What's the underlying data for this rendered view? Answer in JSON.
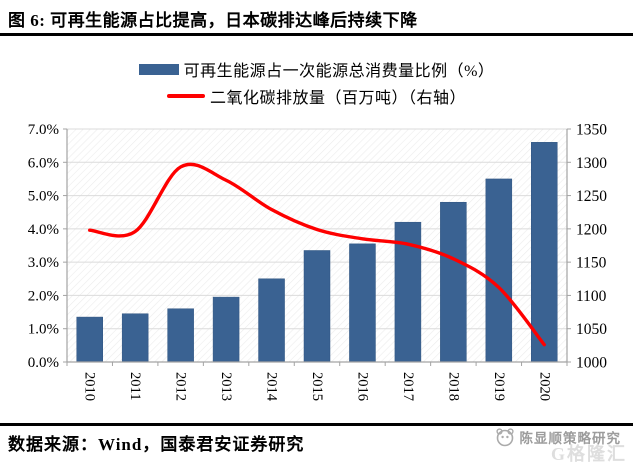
{
  "page": {
    "title": "图 6:  可再生能源占比提高，日本碳排达峰后持续下降"
  },
  "chart_data": {
    "type": "bar",
    "title": "",
    "categories": [
      "2010",
      "2011",
      "2012",
      "2013",
      "2014",
      "2015",
      "2016",
      "2017",
      "2018",
      "2019",
      "2020"
    ],
    "series": [
      {
        "name": "可再生能源占一次能源总消费量比例（%）",
        "type": "bar",
        "axis": "left",
        "color": "#3A6292",
        "values": [
          1.35,
          1.45,
          1.6,
          1.95,
          2.5,
          3.35,
          3.55,
          4.2,
          4.8,
          5.5,
          6.6
        ]
      },
      {
        "name": "二氧化碳排放量（百万吨）（右轴）",
        "type": "line",
        "axis": "right",
        "color": "#FE0000",
        "smooth": true,
        "values": [
          1198,
          1196,
          1293,
          1273,
          1229,
          1199,
          1185,
          1177,
          1155,
          1112,
          1026
        ]
      }
    ],
    "left_axis": {
      "min": 0,
      "max": 7,
      "ticks": [
        "0.0%",
        "1.0%",
        "2.0%",
        "3.0%",
        "4.0%",
        "5.0%",
        "6.0%",
        "7.0%"
      ]
    },
    "right_axis": {
      "min": 1000,
      "max": 1350,
      "ticks": [
        "1000",
        "1050",
        "1100",
        "1150",
        "1200",
        "1250",
        "1300",
        "1350"
      ]
    },
    "grid": true,
    "legend_position": "top",
    "grid_color": "#DBDBDB",
    "axis_color": "#A3A3A3",
    "hatch_color": "#ECECEC"
  },
  "footer": {
    "source": "数据来源：Wind，国泰君安证券研究",
    "watermark": "陈显顺策略研究",
    "watermark_logo": "G格隆汇"
  }
}
